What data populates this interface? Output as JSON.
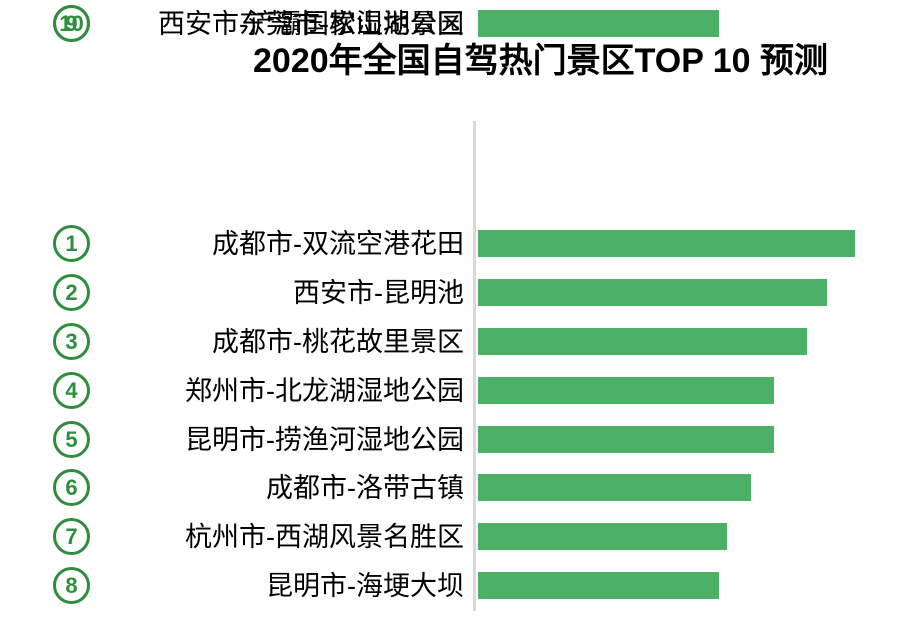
{
  "title": "2020年全国自驾热门景区TOP 10 预测",
  "colors": {
    "bar": "#4cb166",
    "rank_badge": "#2e8e3d",
    "axis_line": "#d9d9d9",
    "title_text": "#000000",
    "label_text": "#000000",
    "background": "#ffffff"
  },
  "chart_data": {
    "type": "bar",
    "orientation": "horizontal",
    "title": "2020年全国自驾热门景区TOP 10 预测",
    "categories": [
      "成都市-双流空港花田",
      "西安市-昆明池",
      "成都市-桃花故里景区",
      "郑州市-北龙湖湿地公园",
      "昆明市-捞渔河湿地公园",
      "成都市-洛带古镇",
      "杭州市-西湖风景名胜区",
      "昆明市-海埂大坝",
      "西安市-浐灞国家湿地公园",
      "东莞市-松山湖景区"
    ],
    "values": [
      100,
      92.6,
      87.3,
      78.6,
      78.6,
      72.4,
      66.0,
      64.0,
      63.8,
      61.0
    ],
    "value_note": "no numeric axis shown; values estimated from bar lengths, normalized to max = 100",
    "xlabel": "",
    "ylabel": "",
    "legend": "none",
    "grid": "off",
    "axis": "single vertical baseline on left of bars",
    "rows": [
      {
        "rank": "1",
        "label": "成都市-双流空港花田",
        "value": 100
      },
      {
        "rank": "2",
        "label": "西安市-昆明池",
        "value": 92.6
      },
      {
        "rank": "3",
        "label": "成都市-桃花故里景区",
        "value": 87.3
      },
      {
        "rank": "4",
        "label": "郑州市-北龙湖湿地公园",
        "value": 78.6
      },
      {
        "rank": "5",
        "label": "昆明市-捞渔河湿地公园",
        "value": 78.6
      },
      {
        "rank": "6",
        "label": "成都市-洛带古镇",
        "value": 72.4
      },
      {
        "rank": "7",
        "label": "杭州市-西湖风景名胜区",
        "value": 66.0
      },
      {
        "rank": "8",
        "label": "昆明市-海埂大坝",
        "value": 64.0
      },
      {
        "rank": "9",
        "label": "西安市-浐灞国家湿地公园",
        "value": 63.8
      },
      {
        "rank": "10",
        "label": "东莞市-松山湖景区",
        "value": 61.0
      }
    ]
  }
}
